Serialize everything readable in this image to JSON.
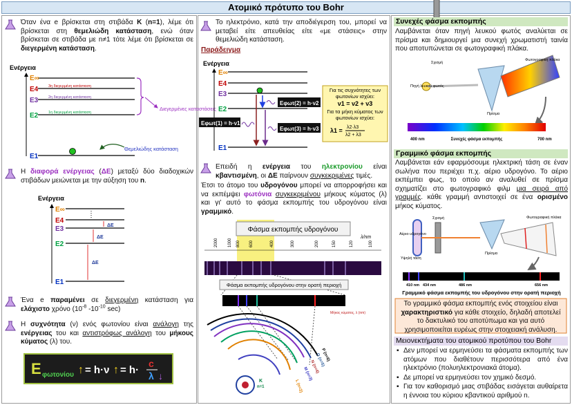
{
  "header": {
    "title": "Ατομικό πρότυπο του Bohr"
  },
  "col1": {
    "p1": [
      "Όταν ένα e βρίσκεται στη στιβάδα ",
      "K",
      " (",
      "n=1",
      "), λέμε ότι βρίσκεται στη ",
      "θεμελιώδη κατάσταση",
      ", ενώ όταν βρίσκεται σε στιβάδα με n≠1 τότε λέμε ότι βρίσκεται σε ",
      "διεγερμένη κατάσταση",
      "."
    ],
    "diagram1": {
      "axis": "Ενέργεια",
      "levels": [
        "E∞",
        "E4",
        "E3",
        "E2",
        "E1"
      ],
      "states": [
        "3η διεγερμένη κατάσταση",
        "2η διεγερμένη κατάσταση",
        "1η διεγερμένη κατάσταση"
      ],
      "excited": "Διεγερμένες καταστάσεις",
      "ground": "Θεμελιώδης κατάσταση"
    },
    "p2": [
      "Η ",
      "διαφορά ενέργειας",
      " (",
      "ΔΕ",
      ") μεταξύ δύο διαδοχικών στιβάδων μειώνεται με την αύξηση του ",
      "n",
      "."
    ],
    "diagram2": {
      "axis": "Ενέργεια",
      "levels": [
        "E∞",
        "E4",
        "E3",
        "E2",
        "E1"
      ],
      "delta": "ΔE"
    },
    "p3": [
      "Ένα e ",
      "παραμένει",
      " σε ",
      "διεγερμένη",
      " κατάσταση για ",
      "ελάχιστο",
      " χρόνο (10",
      "-8",
      " -10",
      "-10",
      " sec)"
    ],
    "p4": [
      "Η ",
      "συχνότητα",
      " (ν) ενός φωτονίου είναι ",
      "ανάλογη",
      " της ",
      "ενέργειας",
      " του και ",
      "αντιστρόφως ανάλογη",
      " του ",
      "μήκους κύματος",
      " (λ) του."
    ],
    "formula": [
      "E",
      "φωτονίου",
      "↑",
      "= h·ν",
      "↑",
      "= h·",
      "c",
      "λ",
      "↓"
    ]
  },
  "col2": {
    "p1": [
      "Το ηλεκτρόνιο, κατά την αποδιέγερση του, μπορεί να μεταβεί είτε απευθείας είτε «με στάσεις» στην θεμελιώδη κατάσταση."
    ],
    "example": "Παράδειγμα",
    "diagram3": {
      "axis": "Ενέργεια",
      "levels": [
        "E∞",
        "E4",
        "E3",
        "E2",
        "E1"
      ],
      "photons": [
        "Eφωτ(1) = h·ν1",
        "Eφωτ(2) = h·ν2",
        "Eφωτ(3) = h·ν3"
      ],
      "note": {
        "freq_text": "Για τις συχνότητες των φωτονίων ισχύει:",
        "freq": "ν1 = ν2 + ν3",
        "wave_text": "Για τα μήκη κύματος των φωτονίων ισχύει:",
        "wave_left": "λ1 =",
        "wave_num": "λ2·λ3",
        "wave_den": "λ2 + λ3"
      }
    },
    "p2": [
      "Επειδή η ",
      "ενέργεια",
      " του ",
      "ηλεκτρονίου",
      " είναι ",
      "κβαντισμένη",
      ", οι ",
      "ΔΕ",
      " παίρνουν ",
      "συγκεκριμένες",
      " τιμές."
    ],
    "p3": [
      "Έτσι το άτομο του ",
      "υδρογόνου",
      " μπορεί να απορροφήσει και να εκπέμψει ",
      "φωτόνια ",
      "συγκεκριμένου",
      " μήκους κύματος (λ) και γι' αυτό το φάσμα εκπομπής του υδρογόνου είναι ",
      "γραμμικό",
      "."
    ],
    "spectrum": {
      "title": "Φάσμα εκπομπής υδρογόνου",
      "unit": "λ/nm",
      "ticks": [
        "2000",
        "1000",
        "800",
        "600",
        "400",
        "300",
        "200",
        "150",
        "120",
        "100"
      ],
      "visible": "Φάσμα εκπομπής υδρογόνου στην ορατή περιοχή",
      "wavelength": "Μήκος κύματος, λ (nm)",
      "orbits": [
        "K",
        "n=1",
        "L (n=2)",
        "M (n=3)",
        "N (n=4)",
        "O (n=5)",
        "P (n=6)"
      ]
    }
  },
  "col3": {
    "s1": {
      "title": "Συνεχές φάσμα εκπομπής",
      "text": [
        "Λαμβάνεται όταν πηγή λευκού φωτός αναλύεται σε πρίσμα και δημιουργεί μια συνεχή χρωματιστή ταινία που αποτυπώνεται σε φωτογραφική πλάκα."
      ],
      "labels": {
        "slit": "Σχισμή",
        "source": "Πηγή λευκού φωτός",
        "prism": "Πρίσμα",
        "plate": "Φωτογραφική πλάκα",
        "min": "400 nm",
        "caption": "Συνεχές φάσμα εκπομπής",
        "max": "700 nm"
      }
    },
    "s2": {
      "title": "Γραμμικό φάσμα εκπομπής",
      "text": [
        "Λαμβάνεται εάν εφαρμόσουμε ηλεκτρική τάση σε έναν σωλήνα που περιέχει π.χ. αέριο υδρογόνο. Το αέριο εκπέμπει φως, το οποίο αν αναλυθεί σε πρίσμα σχηματίζει στο φωτογραφικό φιλμ ",
        "μια σειρά από γραμμές",
        ". κάθε γραμμή αντιστοιχεί σε ένα ",
        "ορισμένο",
        " μήκος κύματος."
      ],
      "labels": {
        "gas": "Αέριο υδρογόνο",
        "voltage": "Υψηλή τάση",
        "slit": "Σχισμή",
        "prism": "Πρίσμα",
        "plate": "Φωτογραφική πλάκα"
      },
      "lines": [
        "410 nm",
        "434 nm",
        "486 nm",
        "656 nm"
      ],
      "caption": "Γραμμικό φάσμα εκπομπής του υδρογόνου στην ορατή περιοχή"
    },
    "box": [
      "Το γραμμικό φάσμα εκπομπής ενός στοιχείου είναι ",
      "χαρακτηριστικό",
      " για κάθε στοιχείο, δηλαδή αποτελεί το δακτυλικό του αποτύπωμα και για αυτό χρησιμοποιείται ευρέως στην στοιχειακή ανάλυση."
    ],
    "s3": {
      "title": "Μειονεκτήματα του ατομικού προτύπου του Bohr",
      "bullets": [
        "Δεν μπορεί να ερμηνεύσει τα φάσματα εκπομπής των ατόμων που διαθέτουν περισσότερα από ένα ηλεκτρόνιο (πολυηλεκτρονιακά άτομα).",
        "Δε μπορεί να ερμηνεύσει τον χημικό δεσμό.",
        "Για τον καθορισμό μιας στιβάδας εισάγεται αυθαίρετα η έννοια του κύριου κβαντικού αριθμού n."
      ]
    }
  }
}
